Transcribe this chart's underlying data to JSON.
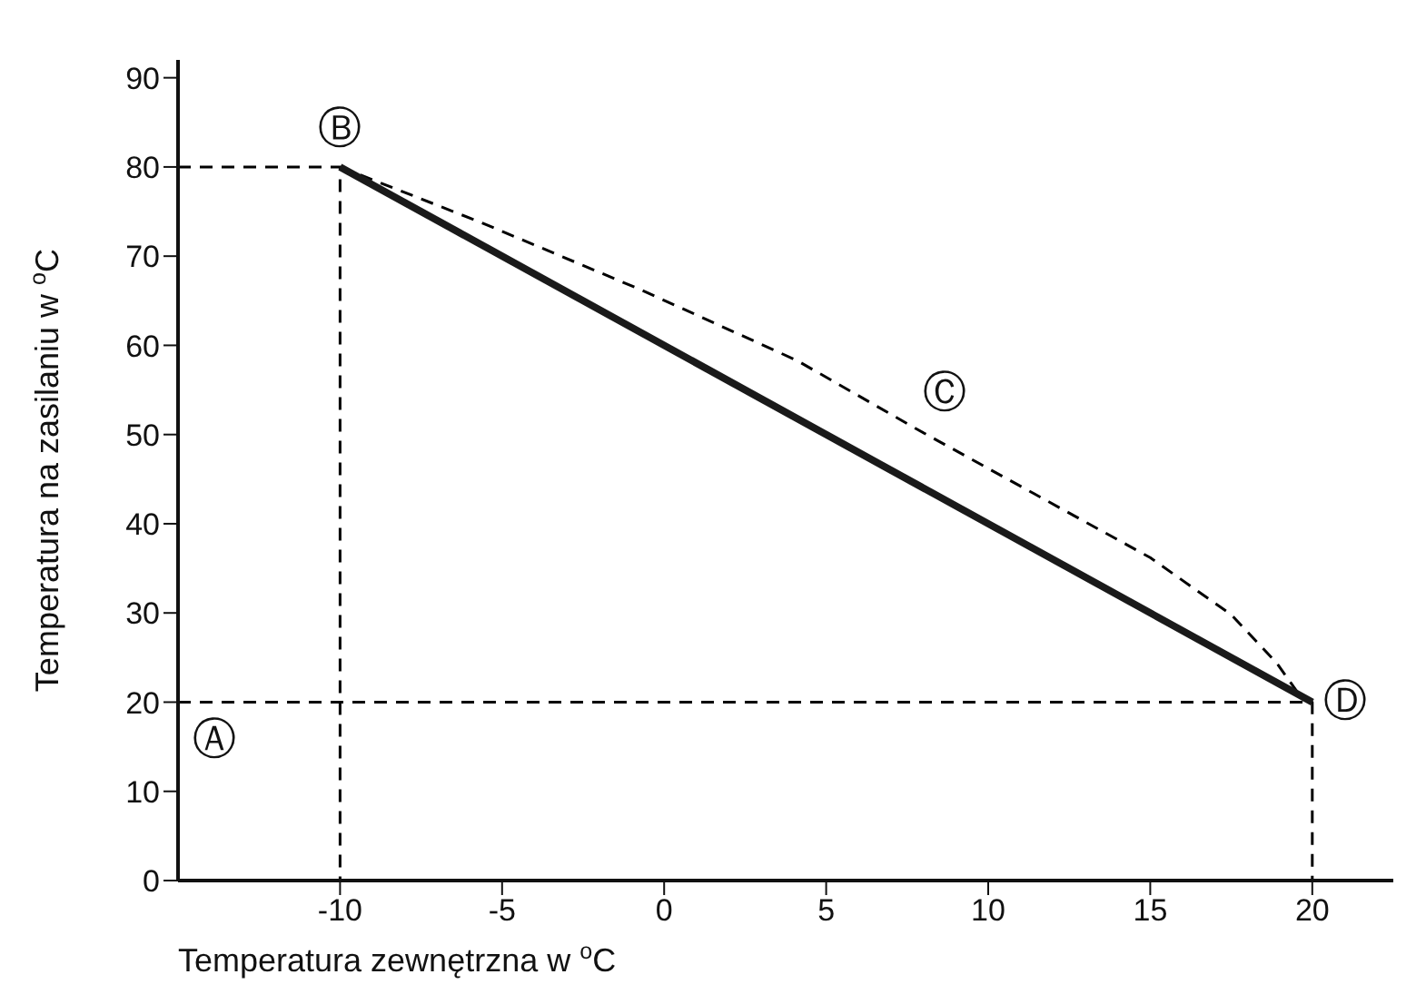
{
  "chart_data": {
    "type": "line",
    "xlabel": "Temperatura zewnętrzna w $^{o}$C",
    "ylabel": "Temperatura na zasilaniu w $^{o}$C",
    "xlim": [
      -15,
      22.5
    ],
    "xticks": [
      -10,
      -5,
      0,
      5,
      10,
      15,
      20
    ],
    "ylim": [
      0,
      92
    ],
    "yticks": [
      0,
      10,
      20,
      30,
      40,
      50,
      60,
      70,
      80,
      90
    ],
    "grid": false,
    "marker": "none",
    "series": [
      {
        "color": "#000000",
        "line_style": "dashed",
        "x": [
          -15,
          -10,
          -10
        ],
        "values": [
          80,
          80,
          0
        ]
      },
      {
        "color": "#000000",
        "line_style": "dashed",
        "x": [
          -15,
          20,
          20
        ],
        "values": [
          20,
          20,
          0
        ]
      },
      {
        "color": "#000000",
        "line_style": "dashed",
        "x": [
          -10,
          -5.6,
          -0.7,
          4.1,
          7.8,
          11.4,
          15,
          17.5,
          18.9,
          19.7,
          20
        ],
        "values": [
          80,
          73.7,
          66.2,
          58.3,
          50.6,
          43.4,
          36.2,
          29.8,
          24.4,
          20.3,
          20
        ]
      },
      {
        "color": "#1a1a1a",
        "line_style": "solid",
        "x": [
          -10,
          20
        ],
        "values": [
          80,
          20
        ]
      }
    ],
    "annotations": [
      {
        "text": "Ⓐ",
        "x": -15,
        "y": 20
      },
      {
        "text": "Ⓑ",
        "x": -10,
        "y": 80
      },
      {
        "text": "Ⓒ",
        "x": 7.8,
        "y": 50.6
      },
      {
        "text": "Ⓓ",
        "x": 20,
        "y": 20
      }
    ]
  }
}
